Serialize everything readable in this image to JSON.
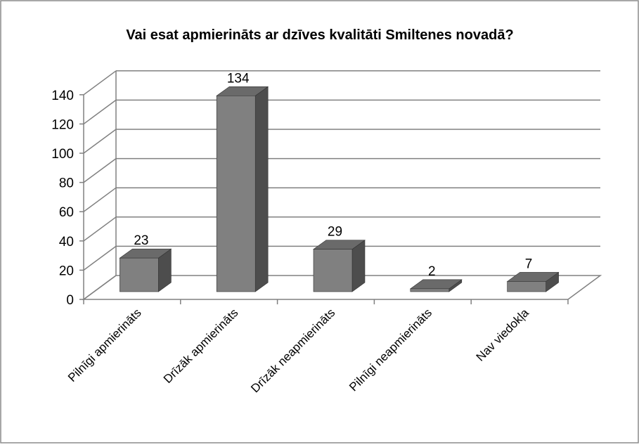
{
  "chart_data": {
    "type": "bar",
    "title": "Vai esat apmierināts ar dzīves kvalitāti Smiltenes novadā?",
    "categories": [
      "Pilnīgi apmierināts",
      "Drīzāk apmierināts",
      "Drīzāk neapmierināts",
      "Pilnīgi neapmierināts",
      "Nav viedokļa"
    ],
    "values": [
      23,
      134,
      29,
      2,
      7
    ],
    "data_labels": [
      "23",
      "134",
      "29",
      "2",
      "7"
    ],
    "y_ticks": [
      "0",
      "20",
      "40",
      "60",
      "80",
      "100",
      "120",
      "140"
    ],
    "ylim": [
      0,
      140
    ],
    "grid": true,
    "legend": "none",
    "colors": {
      "bar_front": "#808080",
      "bar_side": "#4d4d4d",
      "bar_top": "#6a6a6a",
      "grid": "#808080",
      "frame": "#8c8c8c"
    }
  }
}
